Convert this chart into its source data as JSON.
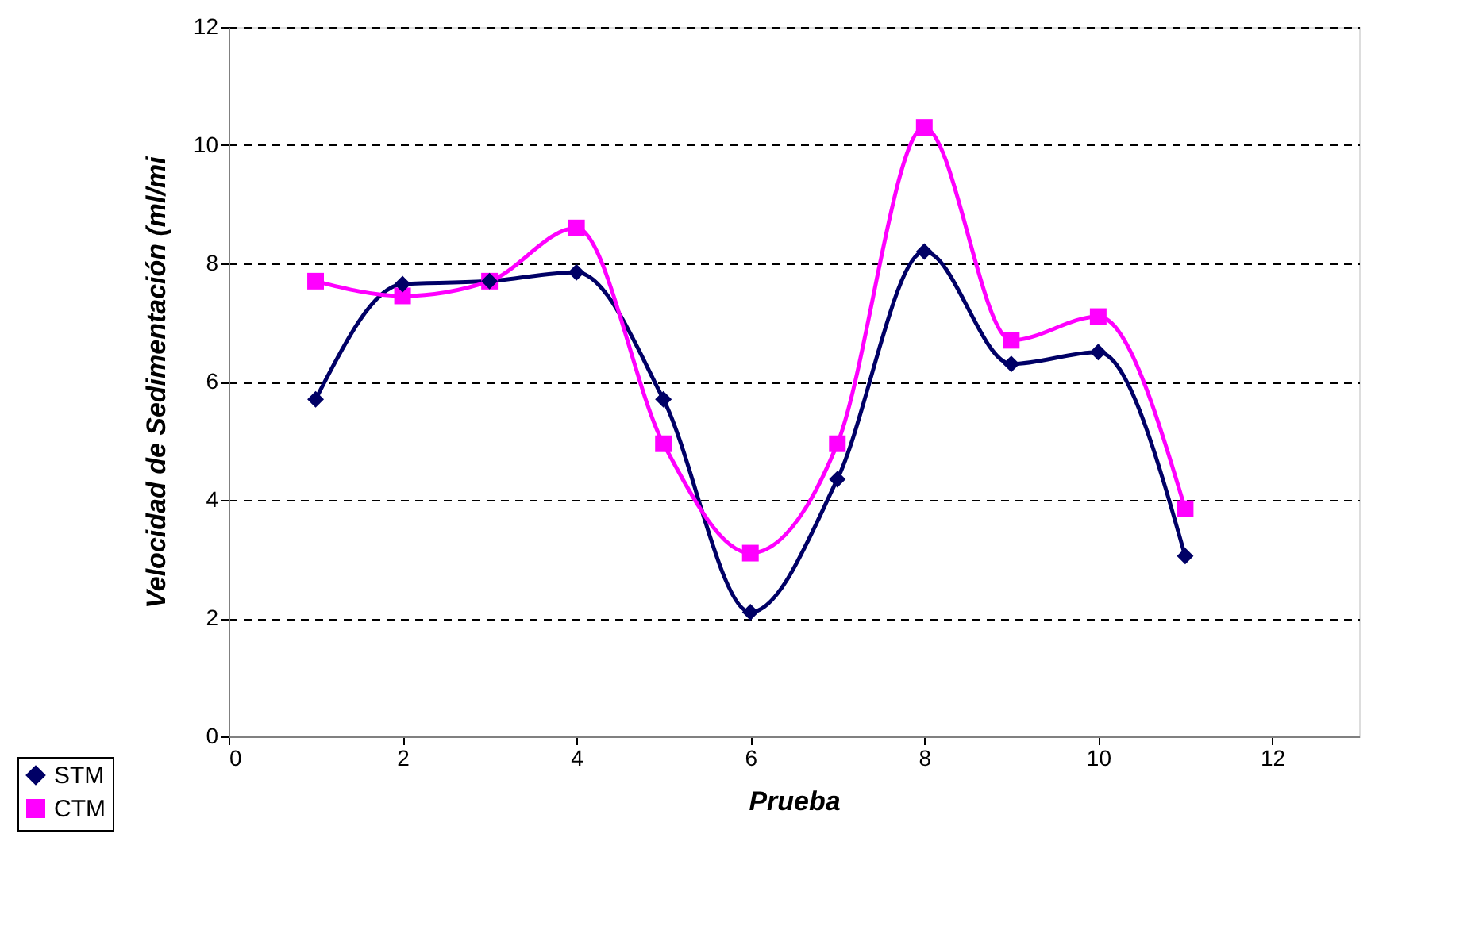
{
  "chart_data": {
    "type": "line",
    "xlabel": "Prueba",
    "ylabel": "Velocidad de Sedimentación (ml/mi",
    "x": [
      1,
      2,
      3,
      4,
      5,
      6,
      7,
      8,
      9,
      10,
      11
    ],
    "series": [
      {
        "name": "STM",
        "color": "#000066",
        "marker": "diamond",
        "values": [
          5.7,
          7.65,
          7.7,
          7.85,
          5.7,
          2.1,
          4.35,
          8.2,
          6.3,
          6.5,
          3.05
        ]
      },
      {
        "name": "CTM",
        "color": "#ff00ff",
        "marker": "square",
        "values": [
          7.7,
          7.45,
          7.7,
          8.6,
          4.95,
          3.1,
          4.95,
          10.3,
          6.7,
          7.1,
          3.85
        ]
      }
    ],
    "xlim": [
      0,
      13
    ],
    "xticks": [
      0,
      2,
      4,
      6,
      8,
      10,
      12
    ],
    "ylim": [
      0,
      12
    ],
    "yticks": [
      0,
      2,
      4,
      6,
      8,
      10,
      12
    ],
    "grid": "y",
    "legend": "bottom left",
    "line_style": "solid"
  }
}
